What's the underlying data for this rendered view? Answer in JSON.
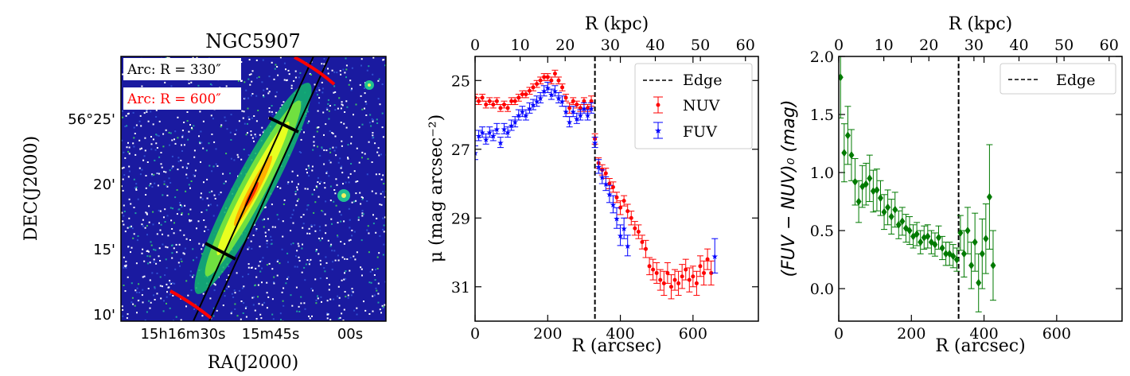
{
  "colors": {
    "nuv": "#ff0000",
    "fuv": "#0000ff",
    "color_index": "#007a00",
    "edge": "#000000"
  },
  "image_panel": {
    "title": "NGC5907",
    "legend_arc_330": "Arc: R = 330″",
    "legend_arc_600": "Arc: R = 600″",
    "ylabel": "DEC(J2000)",
    "xlabel": "RA(J2000)",
    "yticks": [
      "56°25'",
      "20'",
      "15'",
      "10'"
    ],
    "xticks": [
      "15h16m30s",
      "15m45s",
      "00s"
    ]
  },
  "chart_data": [
    {
      "type": "scatter",
      "title": "",
      "xlabel": "R (arcsec)",
      "ylabel": "μ (mag arcsec⁻²)",
      "top_xlabel": "R (kpc)",
      "xlim": [
        0,
        780
      ],
      "ylim": [
        32.0,
        24.3
      ],
      "y_inverted": true,
      "xticks": [
        0,
        200,
        400,
        600
      ],
      "yticks": [
        25,
        27,
        29,
        31
      ],
      "top_xticks": [
        0,
        10,
        20,
        30,
        40,
        50,
        60
      ],
      "kpc_per_arcsec": 0.0806,
      "edge_x": 330,
      "legend": [
        "Edge",
        "NUV",
        "FUV"
      ],
      "series": [
        {
          "name": "NUV",
          "x": [
            0,
            10,
            20,
            30,
            40,
            50,
            60,
            70,
            80,
            90,
            100,
            110,
            120,
            130,
            140,
            150,
            160,
            170,
            180,
            190,
            200,
            210,
            220,
            230,
            240,
            250,
            260,
            270,
            280,
            290,
            300,
            310,
            320,
            330,
            340,
            350,
            360,
            370,
            380,
            390,
            400,
            410,
            420,
            430,
            440,
            450,
            460,
            470,
            480,
            490,
            500,
            510,
            520,
            530,
            540,
            550,
            560,
            570,
            580,
            590,
            600,
            610,
            620,
            630,
            640,
            650
          ],
          "y": [
            25.5,
            25.6,
            25.5,
            25.7,
            25.6,
            25.7,
            25.6,
            25.8,
            25.7,
            25.8,
            25.6,
            25.6,
            25.5,
            25.4,
            25.4,
            25.3,
            25.2,
            25.1,
            25.0,
            24.9,
            24.9,
            25.0,
            24.8,
            25.0,
            25.2,
            25.5,
            25.8,
            25.6,
            25.7,
            25.8,
            25.6,
            25.8,
            25.6,
            26.7,
            27.4,
            27.6,
            27.7,
            28.0,
            28.1,
            28.4,
            28.7,
            28.5,
            28.8,
            29.0,
            29.3,
            29.4,
            29.7,
            29.9,
            30.4,
            30.5,
            30.6,
            30.8,
            30.9,
            30.6,
            31.0,
            30.8,
            30.9,
            30.7,
            30.5,
            30.8,
            30.7,
            30.9,
            30.4,
            30.6,
            30.2,
            30.6
          ],
          "err": [
            0.1,
            0.1,
            0.1,
            0.1,
            0.1,
            0.1,
            0.1,
            0.1,
            0.1,
            0.1,
            0.1,
            0.1,
            0.1,
            0.1,
            0.1,
            0.1,
            0.1,
            0.1,
            0.1,
            0.1,
            0.1,
            0.1,
            0.1,
            0.1,
            0.1,
            0.1,
            0.15,
            0.1,
            0.1,
            0.1,
            0.1,
            0.1,
            0.15,
            0.15,
            0.15,
            0.15,
            0.15,
            0.15,
            0.15,
            0.15,
            0.2,
            0.15,
            0.2,
            0.2,
            0.2,
            0.2,
            0.2,
            0.25,
            0.25,
            0.3,
            0.3,
            0.3,
            0.35,
            0.3,
            0.35,
            0.3,
            0.35,
            0.35,
            0.3,
            0.35,
            0.3,
            0.35,
            0.3,
            0.35,
            0.3,
            0.35
          ]
        },
        {
          "name": "FUV",
          "x": [
            0,
            10,
            20,
            30,
            40,
            50,
            60,
            70,
            80,
            90,
            100,
            110,
            120,
            130,
            140,
            150,
            160,
            170,
            180,
            190,
            200,
            210,
            220,
            230,
            240,
            250,
            260,
            270,
            280,
            290,
            300,
            310,
            320,
            330,
            340,
            350,
            360,
            370,
            380,
            390,
            400,
            410,
            420,
            660
          ],
          "y": [
            27.1,
            26.6,
            26.5,
            26.7,
            26.5,
            26.6,
            26.4,
            26.8,
            26.4,
            26.5,
            26.3,
            26.2,
            26.0,
            25.9,
            26.0,
            25.8,
            25.7,
            25.6,
            25.5,
            25.3,
            25.2,
            25.4,
            25.3,
            25.5,
            25.6,
            25.9,
            26.2,
            25.9,
            26.1,
            26.0,
            25.8,
            26.0,
            25.8,
            26.8,
            27.5,
            27.8,
            28.0,
            28.3,
            28.6,
            29.0,
            29.5,
            29.3,
            29.8,
            30.1
          ],
          "err": [
            0.2,
            0.15,
            0.15,
            0.15,
            0.15,
            0.15,
            0.15,
            0.15,
            0.15,
            0.15,
            0.15,
            0.15,
            0.15,
            0.15,
            0.15,
            0.15,
            0.15,
            0.15,
            0.15,
            0.15,
            0.15,
            0.15,
            0.15,
            0.15,
            0.15,
            0.15,
            0.15,
            0.15,
            0.15,
            0.15,
            0.15,
            0.15,
            0.15,
            0.15,
            0.2,
            0.2,
            0.2,
            0.25,
            0.25,
            0.3,
            0.3,
            0.3,
            0.3,
            0.5
          ]
        }
      ]
    },
    {
      "type": "scatter",
      "title": "",
      "xlabel": "R (arcsec)",
      "ylabel": "(FUV − NUV)₀ (mag)",
      "top_xlabel": "R (kpc)",
      "xlim": [
        0,
        780
      ],
      "ylim": [
        -0.28,
        2.0
      ],
      "xticks": [
        0,
        200,
        400,
        600
      ],
      "yticks": [
        0.0,
        0.5,
        1.0,
        1.5,
        2.0
      ],
      "top_xticks": [
        0,
        10,
        20,
        30,
        40,
        50,
        60
      ],
      "kpc_per_arcsec": 0.0806,
      "edge_x": 330,
      "legend": [
        "Edge"
      ],
      "series": [
        {
          "name": "FUV-NUV",
          "x": [
            5,
            15,
            25,
            35,
            45,
            55,
            65,
            75,
            85,
            95,
            105,
            115,
            125,
            135,
            145,
            155,
            165,
            175,
            185,
            195,
            205,
            215,
            225,
            235,
            245,
            255,
            265,
            275,
            285,
            295,
            305,
            315,
            325,
            335,
            345,
            355,
            365,
            375,
            385,
            395,
            405,
            415,
            425
          ],
          "y": [
            1.82,
            1.17,
            1.32,
            1.15,
            0.92,
            0.75,
            0.88,
            0.9,
            0.95,
            0.84,
            0.85,
            0.78,
            0.66,
            0.7,
            0.62,
            0.68,
            0.55,
            0.58,
            0.52,
            0.5,
            0.45,
            0.47,
            0.4,
            0.44,
            0.45,
            0.4,
            0.38,
            0.44,
            0.35,
            0.3,
            0.3,
            0.28,
            0.25,
            0.48,
            0.3,
            0.5,
            0.2,
            0.4,
            0.05,
            0.3,
            0.43,
            0.79,
            0.2
          ],
          "err": [
            0.35,
            0.25,
            0.25,
            0.22,
            0.2,
            0.18,
            0.18,
            0.18,
            0.2,
            0.18,
            0.18,
            0.15,
            0.15,
            0.15,
            0.15,
            0.15,
            0.12,
            0.12,
            0.12,
            0.12,
            0.1,
            0.1,
            0.1,
            0.1,
            0.1,
            0.1,
            0.1,
            0.1,
            0.1,
            0.1,
            0.1,
            0.1,
            0.1,
            0.15,
            0.2,
            0.2,
            0.2,
            0.25,
            0.25,
            0.3,
            0.3,
            0.45,
            0.3
          ]
        }
      ]
    }
  ]
}
